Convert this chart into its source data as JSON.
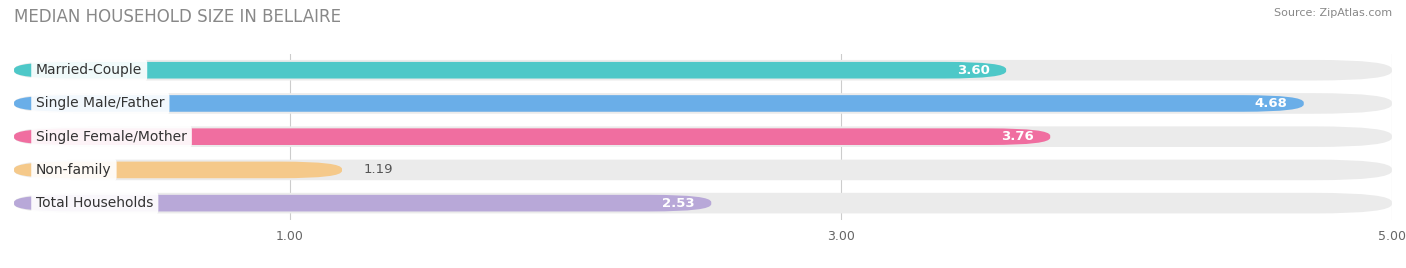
{
  "title": "MEDIAN HOUSEHOLD SIZE IN BELLAIRE",
  "source": "Source: ZipAtlas.com",
  "categories": [
    "Married-Couple",
    "Single Male/Father",
    "Single Female/Mother",
    "Non-family",
    "Total Households"
  ],
  "values": [
    3.6,
    4.68,
    3.76,
    1.19,
    2.53
  ],
  "bar_colors": [
    "#4ec8c8",
    "#6aaee8",
    "#f06ea0",
    "#f5c98a",
    "#b8a8d8"
  ],
  "xlim": [
    0,
    5.0
  ],
  "xticks": [
    1.0,
    3.0,
    5.0
  ],
  "background_color": "#ffffff",
  "bar_bg_color": "#ebebeb",
  "title_fontsize": 12,
  "label_fontsize": 10,
  "value_fontsize": 9.5
}
